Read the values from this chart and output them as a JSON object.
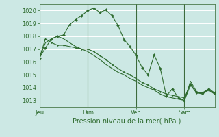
{
  "title": "",
  "xlabel": "Pression niveau de la mer( hPa )",
  "bg_color": "#cce8e4",
  "grid_color": "#ffffff",
  "line_color": "#2d6a2d",
  "ylim": [
    1012.5,
    1020.5
  ],
  "yticks": [
    1013,
    1014,
    1015,
    1016,
    1017,
    1018,
    1019,
    1020
  ],
  "xlim": [
    0,
    174
  ],
  "day_labels": [
    "Jeu",
    "Dim",
    "Ven",
    "Sam"
  ],
  "day_positions": [
    0,
    48,
    96,
    144
  ],
  "series1_x": [
    0,
    6,
    12,
    18,
    24,
    30,
    36,
    42,
    48,
    54,
    60,
    66,
    72,
    78,
    84,
    90,
    96,
    102,
    108,
    114,
    120,
    126,
    132,
    138,
    144,
    150,
    156,
    162,
    168,
    174
  ],
  "series1_y": [
    1016.3,
    1017.1,
    1017.8,
    1018.0,
    1018.1,
    1018.9,
    1019.3,
    1019.6,
    1020.0,
    1020.2,
    1019.85,
    1020.05,
    1019.6,
    1018.85,
    1017.75,
    1017.2,
    1016.5,
    1015.55,
    1015.0,
    1016.55,
    1015.5,
    1013.35,
    1013.9,
    1013.2,
    1013.0,
    1014.2,
    1013.6,
    1013.6,
    1013.9,
    1013.6
  ],
  "series1_markers": [
    0,
    6,
    12,
    18,
    24,
    30,
    36,
    42,
    48,
    54,
    60,
    66,
    72,
    78,
    84,
    90,
    96,
    102,
    108,
    114,
    120,
    126,
    132,
    138,
    144,
    150,
    156,
    162,
    168,
    174
  ],
  "series2_x": [
    0,
    6,
    12,
    18,
    24,
    30,
    36,
    42,
    48,
    54,
    60,
    66,
    72,
    78,
    84,
    90,
    96,
    102,
    108,
    114,
    120,
    126,
    132,
    138,
    144,
    150,
    156,
    162,
    168,
    174
  ],
  "series2_y": [
    1016.3,
    1017.8,
    1017.5,
    1017.3,
    1017.3,
    1017.2,
    1017.1,
    1017.0,
    1017.0,
    1016.8,
    1016.5,
    1016.2,
    1015.8,
    1015.5,
    1015.2,
    1015.0,
    1014.7,
    1014.4,
    1014.2,
    1013.9,
    1013.7,
    1013.5,
    1013.4,
    1013.3,
    1013.2,
    1014.3,
    1013.6,
    1013.5,
    1013.8,
    1013.5
  ],
  "series3_x": [
    0,
    6,
    12,
    18,
    24,
    30,
    36,
    42,
    48,
    54,
    60,
    66,
    72,
    78,
    84,
    90,
    96,
    102,
    108,
    114,
    120,
    126,
    132,
    138,
    144,
    150,
    156,
    162,
    168,
    174
  ],
  "series3_y": [
    1016.3,
    1017.5,
    1017.8,
    1018.0,
    1017.8,
    1017.5,
    1017.2,
    1017.0,
    1016.8,
    1016.5,
    1016.2,
    1015.8,
    1015.5,
    1015.2,
    1015.0,
    1014.7,
    1014.5,
    1014.2,
    1014.0,
    1013.8,
    1013.5,
    1013.3,
    1013.2,
    1013.1,
    1013.0,
    1014.5,
    1013.7,
    1013.5,
    1013.9,
    1013.5
  ]
}
